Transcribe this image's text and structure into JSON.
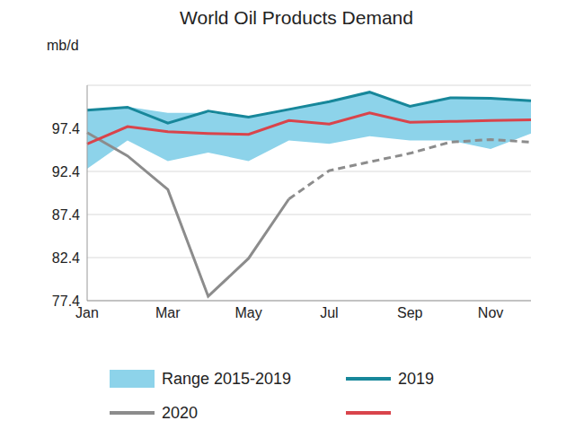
{
  "chart_data": {
    "type": "line",
    "title": "World Oil Products Demand",
    "y_label": "mb/d",
    "categories": [
      "Jan",
      null,
      "Mar",
      null,
      "May",
      null,
      "Jul",
      null,
      "Sep",
      null,
      "Nov",
      null
    ],
    "ylim": [
      77.4,
      102.4
    ],
    "yticks": [
      77.4,
      82.4,
      87.4,
      92.4,
      97.4
    ],
    "grid": true,
    "legend": "bottom",
    "range": {
      "name": "Range 2015-2019",
      "color": "#8dd3ea",
      "low": [
        92.7,
        96.0,
        93.6,
        94.6,
        93.6,
        96.0,
        95.6,
        96.5,
        96.0,
        96.0,
        95.0,
        96.8
      ],
      "high": [
        99.5,
        99.9,
        99.2,
        99.2,
        98.7,
        99.6,
        100.5,
        101.6,
        99.95,
        101.0,
        100.9,
        100.6
      ]
    },
    "series": [
      {
        "name": "2019",
        "color": "#17879a",
        "line_style": "solid",
        "values": [
          99.5,
          99.85,
          98.0,
          99.4,
          98.7,
          99.6,
          100.5,
          101.6,
          99.95,
          100.95,
          100.9,
          100.6
        ]
      },
      {
        "name": "2020",
        "color": "#8c8c8c",
        "line_style": "solid",
        "values": [
          96.9,
          94.2,
          90.3,
          77.9,
          82.3,
          89.2,
          null,
          null,
          null,
          null,
          null,
          null
        ],
        "forecast_values": [
          null,
          null,
          null,
          null,
          null,
          89.2,
          92.5,
          93.5,
          94.5,
          95.8,
          96.1,
          95.8
        ]
      },
      {
        "color": "#d9444b",
        "line_style": "solid",
        "values": [
          95.6,
          97.6,
          97.0,
          96.8,
          96.7,
          98.3,
          97.9,
          99.2,
          98.1,
          98.2,
          98.3,
          98.4
        ]
      }
    ]
  }
}
